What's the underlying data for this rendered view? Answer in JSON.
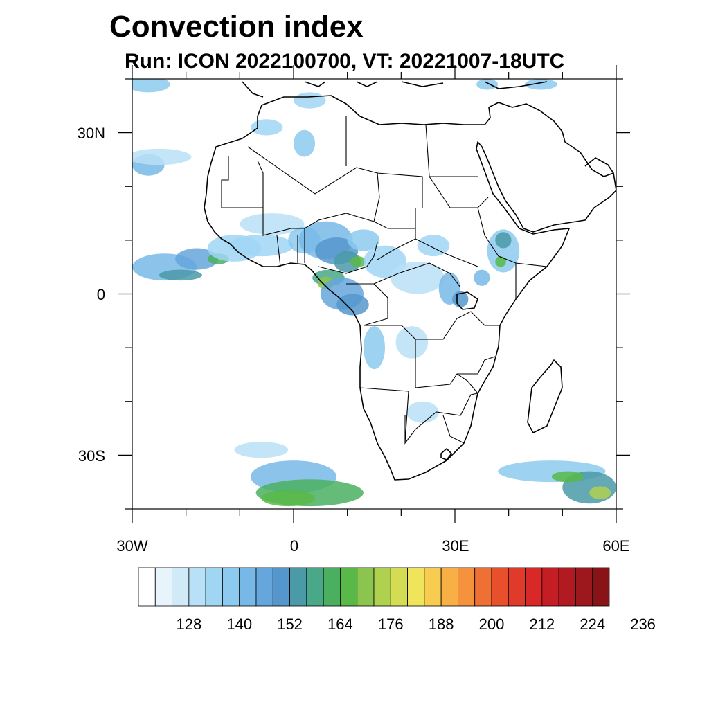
{
  "title": "Convection index",
  "subtitle": "Run: ICON 2022100700,  VT: 20221007-18UTC",
  "map": {
    "lon_range": [
      -30,
      60
    ],
    "lat_range": [
      -40,
      40
    ],
    "lat_ticks": [
      {
        "value": 30,
        "label": "30N"
      },
      {
        "value": 0,
        "label": "0"
      },
      {
        "value": -30,
        "label": "30S"
      }
    ],
    "lon_ticks": [
      {
        "value": -30,
        "label": "30W"
      },
      {
        "value": 0,
        "label": "0"
      },
      {
        "value": 30,
        "label": "30E"
      },
      {
        "value": 60,
        "label": "60E"
      }
    ]
  },
  "colorbar": {
    "colors": [
      "#ffffff",
      "#e8f4fc",
      "#d0eaf8",
      "#b8e0f6",
      "#a0d6f4",
      "#8ccaef",
      "#78b8e6",
      "#65a6dc",
      "#5596cc",
      "#4a9aa8",
      "#48a888",
      "#4ab060",
      "#58b848",
      "#8cc450",
      "#b0d050",
      "#d4dc54",
      "#f0e45a",
      "#f8cc50",
      "#f8b046",
      "#f4923e",
      "#ee7034",
      "#e8502c",
      "#e03a2a",
      "#d82828",
      "#c41e24",
      "#b01a20",
      "#9c181c",
      "#881418"
    ],
    "labels": [
      "128",
      "140",
      "152",
      "164",
      "176",
      "188",
      "200",
      "212",
      "224",
      "236"
    ]
  },
  "weather": {
    "blobs": [
      {
        "lon": -27,
        "lat": 39,
        "rx": 4,
        "ry": 1.5,
        "level": 5
      },
      {
        "lon": -27,
        "lat": 24,
        "rx": 3,
        "ry": 2,
        "level": 6
      },
      {
        "lon": -25,
        "lat": 25.5,
        "rx": 6,
        "ry": 1.5,
        "level": 3
      },
      {
        "lon": -24,
        "lat": 5,
        "rx": 6,
        "ry": 2.5,
        "level": 6
      },
      {
        "lon": -18,
        "lat": 6.5,
        "rx": 4,
        "ry": 2,
        "level": 7
      },
      {
        "lon": -21,
        "lat": 3.5,
        "rx": 4,
        "ry": 1,
        "level": 9
      },
      {
        "lon": -14,
        "lat": 6.5,
        "rx": 2,
        "ry": 1,
        "level": 11
      },
      {
        "lon": -11,
        "lat": 8.5,
        "rx": 5,
        "ry": 2.5,
        "level": 4
      },
      {
        "lon": -4,
        "lat": 13,
        "rx": 6,
        "ry": 2,
        "level": 3
      },
      {
        "lon": 2,
        "lat": 28,
        "rx": 2,
        "ry": 2.5,
        "level": 5
      },
      {
        "lon": -5,
        "lat": 31,
        "rx": 3,
        "ry": 1.5,
        "level": 4
      },
      {
        "lon": 3,
        "lat": 36,
        "rx": 3,
        "ry": 1.5,
        "level": 4
      },
      {
        "lon": -6,
        "lat": 9,
        "rx": 6,
        "ry": 2,
        "level": 4
      },
      {
        "lon": 2,
        "lat": 10,
        "rx": 3,
        "ry": 2.5,
        "level": 5
      },
      {
        "lon": 6,
        "lat": 10,
        "rx": 5,
        "ry": 3.5,
        "level": 6
      },
      {
        "lon": 8,
        "lat": 8,
        "rx": 4,
        "ry": 2.5,
        "level": 8
      },
      {
        "lon": 6.5,
        "lat": 3,
        "rx": 3,
        "ry": 1.5,
        "level": 10
      },
      {
        "lon": 6,
        "lat": 2,
        "rx": 1.5,
        "ry": 1.2,
        "level": 13
      },
      {
        "lon": 10,
        "lat": 6,
        "rx": 2.5,
        "ry": 2,
        "level": 9
      },
      {
        "lon": 12,
        "lat": 6,
        "rx": 1.5,
        "ry": 1,
        "level": 12
      },
      {
        "lon": 9,
        "lat": 0,
        "rx": 4,
        "ry": 3,
        "level": 7
      },
      {
        "lon": 11,
        "lat": -2,
        "rx": 3,
        "ry": 2,
        "level": 8
      },
      {
        "lon": 13,
        "lat": 10,
        "rx": 3,
        "ry": 2,
        "level": 5
      },
      {
        "lon": 17,
        "lat": 6,
        "rx": 4,
        "ry": 3,
        "level": 4
      },
      {
        "lon": 23,
        "lat": 3,
        "rx": 5,
        "ry": 3,
        "level": 3
      },
      {
        "lon": 26,
        "lat": 9,
        "rx": 3,
        "ry": 2,
        "level": 4
      },
      {
        "lon": 29,
        "lat": 1,
        "rx": 2,
        "ry": 3,
        "level": 6
      },
      {
        "lon": 31,
        "lat": -1,
        "rx": 1.5,
        "ry": 1.5,
        "level": 8
      },
      {
        "lon": 35,
        "lat": 3,
        "rx": 1.5,
        "ry": 1.5,
        "level": 6
      },
      {
        "lon": 39,
        "lat": 8,
        "rx": 3,
        "ry": 4,
        "level": 5
      },
      {
        "lon": 39,
        "lat": 10,
        "rx": 1.5,
        "ry": 1.5,
        "level": 9
      },
      {
        "lon": 38.5,
        "lat": 6,
        "rx": 1,
        "ry": 1,
        "level": 12
      },
      {
        "lon": 15,
        "lat": -10,
        "rx": 2,
        "ry": 4,
        "level": 5
      },
      {
        "lon": 22,
        "lat": -9,
        "rx": 3,
        "ry": 3,
        "level": 3
      },
      {
        "lon": 24,
        "lat": -22,
        "rx": 3,
        "ry": 2,
        "level": 3
      },
      {
        "lon": -6,
        "lat": -29,
        "rx": 5,
        "ry": 1.5,
        "level": 3
      },
      {
        "lon": 0,
        "lat": -34,
        "rx": 8,
        "ry": 3,
        "level": 6
      },
      {
        "lon": 3,
        "lat": -37,
        "rx": 10,
        "ry": 2.5,
        "level": 11
      },
      {
        "lon": -1,
        "lat": -38,
        "rx": 5,
        "ry": 1.5,
        "level": 12
      },
      {
        "lon": 48,
        "lat": -33,
        "rx": 10,
        "ry": 2,
        "level": 5
      },
      {
        "lon": 55,
        "lat": -36,
        "rx": 5,
        "ry": 3,
        "level": 9
      },
      {
        "lon": 57,
        "lat": -37,
        "rx": 2,
        "ry": 1.2,
        "level": 14
      },
      {
        "lon": 51,
        "lat": -34,
        "rx": 3,
        "ry": 1,
        "level": 12
      },
      {
        "lon": 36,
        "lat": 39,
        "rx": 2,
        "ry": 1,
        "level": 5
      },
      {
        "lon": 46,
        "lat": 39,
        "rx": 3,
        "ry": 1,
        "level": 5
      }
    ]
  }
}
